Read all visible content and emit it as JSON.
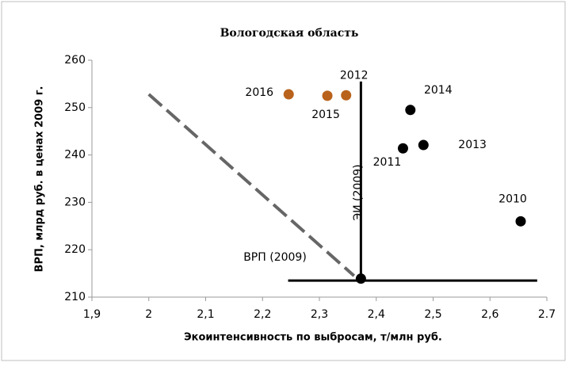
{
  "chart_data": {
    "type": "scatter",
    "title": "Вологодская область",
    "xlabel": "Экоинтенсивность по выбросам, т/млн руб.",
    "ylabel": "ВРП, млрд руб. в ценах 2009 г.",
    "xlim": [
      1.9,
      2.7
    ],
    "xticks": [
      {
        "value": 1.9,
        "label": "1,9"
      },
      2,
      {
        "value": 2.1,
        "label": "2,1"
      },
      {
        "value": 2.2,
        "label": "2,2"
      },
      {
        "value": 2.3,
        "label": "2,3"
      },
      {
        "value": 2.4,
        "label": "2,4"
      },
      {
        "value": 2.5,
        "label": "2,5"
      },
      {
        "value": 2.6,
        "label": "2,6"
      },
      2.7
    ],
    "ylim": [
      210,
      260
    ],
    "yticks": [
      210,
      220,
      230,
      240,
      250,
      260
    ],
    "grid": false,
    "series": [
      {
        "color": "#b8621b",
        "x": [
          2.246,
          2.314,
          2.347
        ],
        "values": [
          252.8,
          252.5,
          252.6
        ],
        "labels": [
          "2016",
          "2015",
          "2012"
        ]
      },
      {
        "color": "#000000",
        "x": [
          2.46,
          2.483,
          2.447,
          2.654,
          2.373
        ],
        "values": [
          249.5,
          242.1,
          241.4,
          226,
          213.9
        ],
        "labels": [
          "2014",
          "2013",
          "2011",
          "2010",
          null
        ]
      }
    ],
    "lines": [
      {
        "color": "#000000",
        "dashed": false,
        "x": [
          2.373,
          2.373
        ],
        "y": [
          213.9,
          255.5
        ]
      },
      {
        "color": "#000000",
        "dashed": false,
        "x": [
          2.245,
          2.683
        ],
        "y": [
          213.5,
          213.5
        ]
      },
      {
        "color": "#666666",
        "dashed": true,
        "x": [
          2.0,
          2.361
        ],
        "y": [
          252.8,
          214.5
        ]
      }
    ],
    "annotations": [
      "ВРП (2009)",
      "ЭИ (2009)"
    ]
  }
}
